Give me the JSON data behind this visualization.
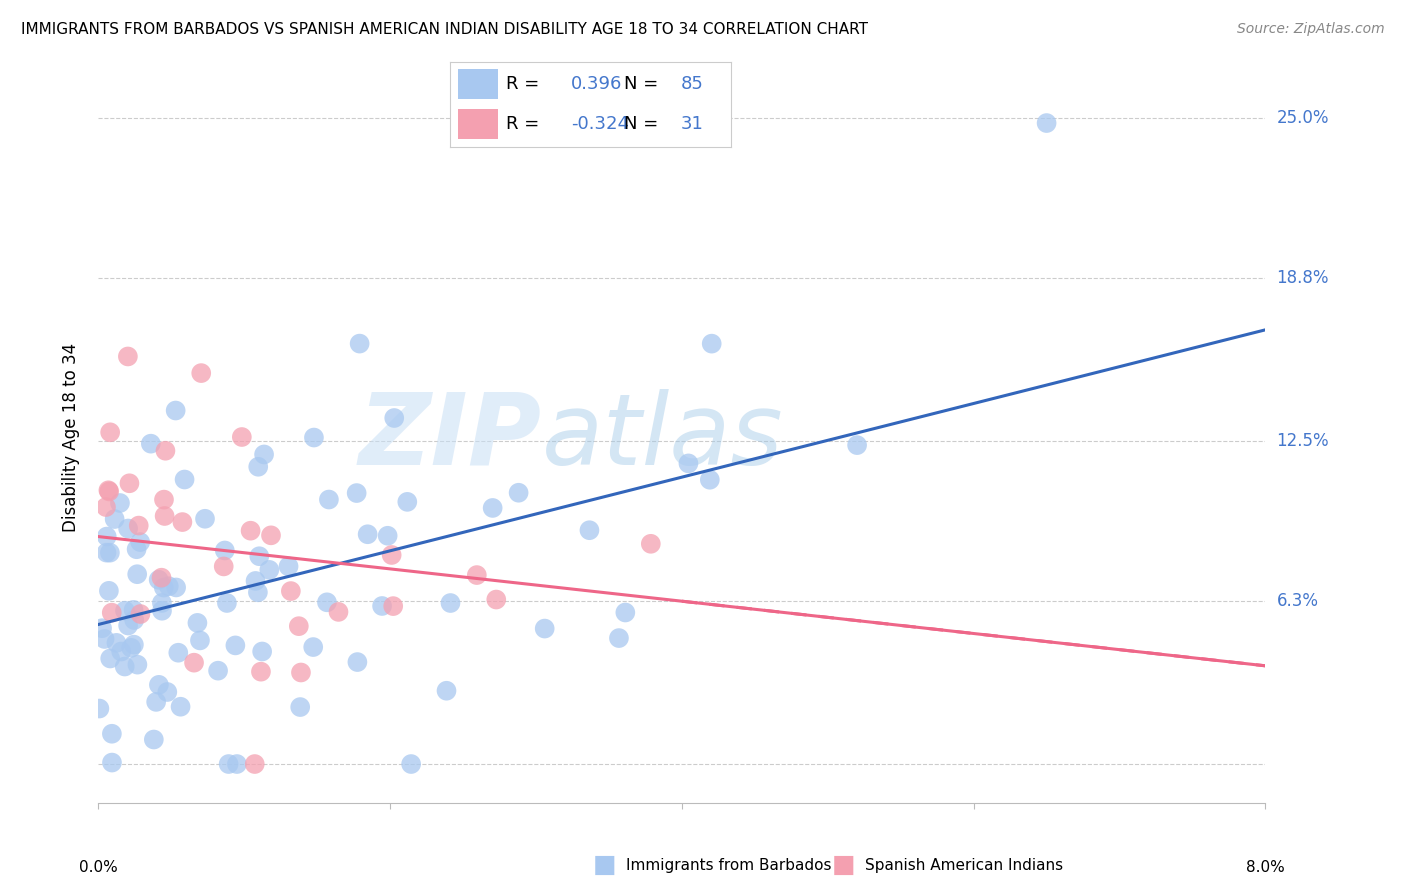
{
  "title": "IMMIGRANTS FROM BARBADOS VS SPANISH AMERICAN INDIAN DISABILITY AGE 18 TO 34 CORRELATION CHART",
  "source": "Source: ZipAtlas.com",
  "ylabel": "Disability Age 18 to 34",
  "yticks": [
    0.0,
    0.063,
    0.125,
    0.188,
    0.25
  ],
  "ytick_labels": [
    "",
    "6.3%",
    "12.5%",
    "18.8%",
    "25.0%"
  ],
  "xmin": 0.0,
  "xmax": 0.08,
  "ymin": -0.015,
  "ymax": 0.268,
  "r_blue": 0.396,
  "n_blue": 85,
  "r_pink": -0.324,
  "n_pink": 31,
  "blue_color": "#a8c8f0",
  "pink_color": "#f4a0b0",
  "blue_line_color": "#3366bb",
  "pink_line_color": "#ee6688",
  "text_color": "#4477cc",
  "legend_label_blue": "Immigrants from Barbados",
  "legend_label_pink": "Spanish American Indians",
  "watermark_zip": "ZIP",
  "watermark_atlas": "atlas",
  "blue_line_y0": 0.054,
  "blue_line_y1": 0.168,
  "pink_line_y0": 0.088,
  "pink_line_y1": 0.038,
  "pink_line_ext_y1": -0.01,
  "grid_color": "#cccccc",
  "grid_linestyle": "--",
  "spine_color": "#bbbbbb"
}
